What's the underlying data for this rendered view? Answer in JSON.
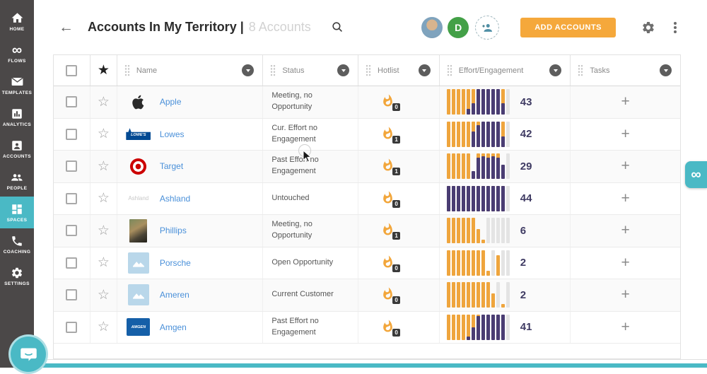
{
  "colors": {
    "teal": "#4ab9c5",
    "sidebar_bg": "#4b4848",
    "button_orange": "#f5a83b",
    "bar_orange": "#efa53d",
    "bar_purple": "#4a3d73",
    "bar_empty": "#e4e4e4",
    "link_blue": "#4a90d9",
    "score_navy": "#3f3b63",
    "avatar_green": "#43a047"
  },
  "sidebar": {
    "items": [
      {
        "id": "home",
        "label": "HOME",
        "icon": "home-icon",
        "active": false
      },
      {
        "id": "flows",
        "label": "FLOWS",
        "icon": "infinity-icon",
        "active": false
      },
      {
        "id": "templates",
        "label": "TEMPLATES",
        "icon": "envelope-icon",
        "active": false
      },
      {
        "id": "analytics",
        "label": "ANALYTICS",
        "icon": "bar-chart-icon",
        "active": false
      },
      {
        "id": "accounts",
        "label": "ACCOUNTS",
        "icon": "person-badge-icon",
        "active": false
      },
      {
        "id": "people",
        "label": "PEOPLE",
        "icon": "people-icon",
        "active": false
      },
      {
        "id": "spaces",
        "label": "SPACES",
        "icon": "grid-icon",
        "active": true
      },
      {
        "id": "coaching",
        "label": "COACHING",
        "icon": "phone-icon",
        "active": false
      },
      {
        "id": "settings",
        "label": "SETTINGS",
        "icon": "gear-icon",
        "active": false
      }
    ]
  },
  "header": {
    "back_icon": "←",
    "title": "Accounts In My Territory |",
    "subtitle": "8 Accounts",
    "avatar_initial": "D",
    "add_button_label": "ADD ACCOUNTS"
  },
  "table": {
    "columns": [
      {
        "id": "name",
        "label": "Name"
      },
      {
        "id": "status",
        "label": "Status"
      },
      {
        "id": "hotlist",
        "label": "Hotlist"
      },
      {
        "id": "effort",
        "label": "Effort/Engagement"
      },
      {
        "id": "tasks",
        "label": "Tasks"
      }
    ],
    "rows": [
      {
        "name": "Apple",
        "logo": "apple",
        "status": "Meeting, no Opportunity",
        "hotlist": 0,
        "effort_score": 43,
        "bars": [
          "o:1",
          "o:1",
          "o:1",
          "o:1",
          "o:1|p:0.22",
          "o:1|p:0.45",
          "p:1",
          "p:1",
          "p:1",
          "p:1",
          "p:1",
          "o:1|p:0.45",
          "g:1"
        ]
      },
      {
        "name": "Lowes",
        "logo": "lowes",
        "logo_text": "LOWE'S",
        "status": "Cur. Effort no Engagement",
        "hotlist": 1,
        "effort_score": 42,
        "bars": [
          "o:1",
          "o:1",
          "o:1",
          "o:1",
          "o:1",
          "o:1|p:0.6",
          "o:1|p:0.85",
          "p:1",
          "p:1",
          "p:1",
          "p:1",
          "o:1|p:0.4",
          "g:1"
        ]
      },
      {
        "name": "Target",
        "logo": "target",
        "status": "Past Effort no Engagement",
        "hotlist": 1,
        "effort_score": 29,
        "bars": [
          "o:1",
          "o:1",
          "o:1",
          "o:1",
          "o:1",
          "p:0.3",
          "o:1|p:0.85",
          "o:1|p:0.9",
          "o:1|p:0.85",
          "o:1|p:0.9",
          "o:1|p:0.85",
          "p:0.55",
          "g:1"
        ]
      },
      {
        "name": "Ashland",
        "logo": "ashland",
        "logo_text": "Ashland",
        "status": "Untouched",
        "hotlist": 0,
        "effort_score": 44,
        "bars": [
          "o:1|p:1",
          "o:1|p:1",
          "o:1|p:1",
          "o:1|p:1",
          "o:1|p:1",
          "o:1|p:1",
          "o:1|p:1",
          "o:1|p:1",
          "o:1|p:1",
          "o:1|p:1",
          "o:1|p:1",
          "o:1|p:1",
          "g:1"
        ]
      },
      {
        "name": "Phillips",
        "logo": "phillips",
        "status": "Meeting, no Opportunity",
        "hotlist": 1,
        "effort_score": 6,
        "bars": [
          "o:1",
          "o:1",
          "o:1",
          "o:1",
          "o:1",
          "o:1",
          "o:0.55",
          "o:0.15",
          "g:1",
          "g:1",
          "g:1",
          "g:1",
          "g:1"
        ]
      },
      {
        "name": "Porsche",
        "logo": "placeholder",
        "status": "Open Opportunity",
        "hotlist": 0,
        "effort_score": 2,
        "bars": [
          "o:1",
          "o:1",
          "o:1",
          "o:1",
          "o:1",
          "o:1",
          "o:1",
          "o:1",
          "o:0.2",
          "g:1",
          "o:0.8",
          "g:1",
          "g:1"
        ]
      },
      {
        "name": "Ameren",
        "logo": "placeholder",
        "status": "Current Customer",
        "hotlist": 0,
        "effort_score": 2,
        "bars": [
          "o:1",
          "o:1",
          "o:1",
          "o:1",
          "o:1",
          "o:1",
          "o:1",
          "o:1",
          "o:1",
          "o:0.55",
          "g:1",
          "o:0.15",
          "g:1"
        ]
      },
      {
        "name": "Amgen",
        "logo": "amgen",
        "logo_text": "AMGEN",
        "status": "Past Effort no Engagement",
        "hotlist": 0,
        "effort_score": 41,
        "bars": [
          "o:1",
          "o:1",
          "o:1",
          "o:1",
          "o:1|p:0.12",
          "o:1|p:0.5",
          "o:1|p:0.95",
          "p:1",
          "p:1",
          "p:1",
          "p:1",
          "p:1",
          "g:1"
        ]
      }
    ]
  },
  "overlays": {
    "flows_tab_glyph": "∞"
  }
}
